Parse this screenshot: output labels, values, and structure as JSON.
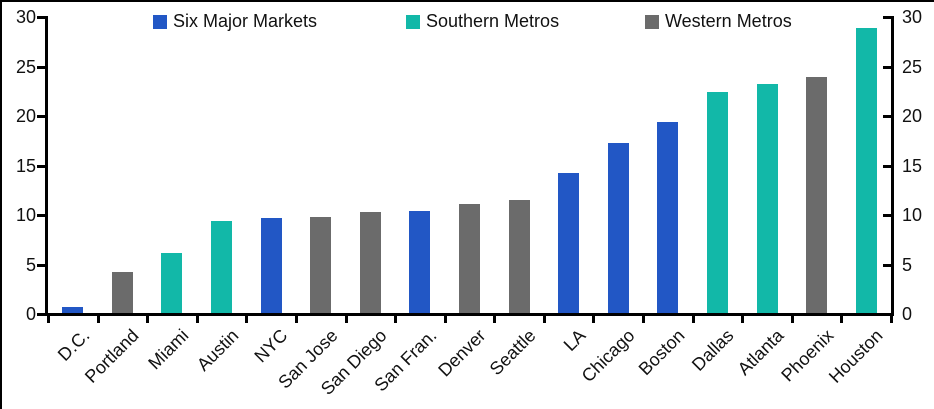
{
  "chart_data": {
    "type": "bar",
    "title": "",
    "xlabel": "",
    "ylabel": "",
    "categories": [
      "D.C.",
      "Portland",
      "Miami",
      "Austin",
      "NYC",
      "San Jose",
      "San Diego",
      "San Fran.",
      "Denver",
      "Seattle",
      "LA",
      "Chicago",
      "Boston",
      "Dallas",
      "Atlanta",
      "Phoenix",
      "Houston"
    ],
    "values": [
      0.6,
      4.1,
      6.1,
      9.3,
      9.6,
      9.7,
      10.2,
      10.3,
      11.0,
      11.4,
      14.1,
      17.2,
      19.3,
      22.3,
      23.1,
      23.8,
      28.8
    ],
    "groups": [
      "six",
      "western",
      "southern",
      "southern",
      "six",
      "western",
      "western",
      "six",
      "western",
      "western",
      "six",
      "six",
      "six",
      "southern",
      "southern",
      "western",
      "southern"
    ],
    "legend": [
      {
        "id": "six",
        "label": "Six Major Markets",
        "color": "#2257C5"
      },
      {
        "id": "southern",
        "label": "Southern Metros",
        "color": "#12B8A8"
      },
      {
        "id": "western",
        "label": "Western Metros",
        "color": "#6B6B6B"
      }
    ],
    "ylim": [
      0,
      30
    ],
    "yticks": [
      0,
      5,
      10,
      15,
      20,
      25,
      30
    ],
    "dual_y_axis": true,
    "grid": false,
    "legend_position": "top-inside",
    "axis_color": "#000000"
  }
}
